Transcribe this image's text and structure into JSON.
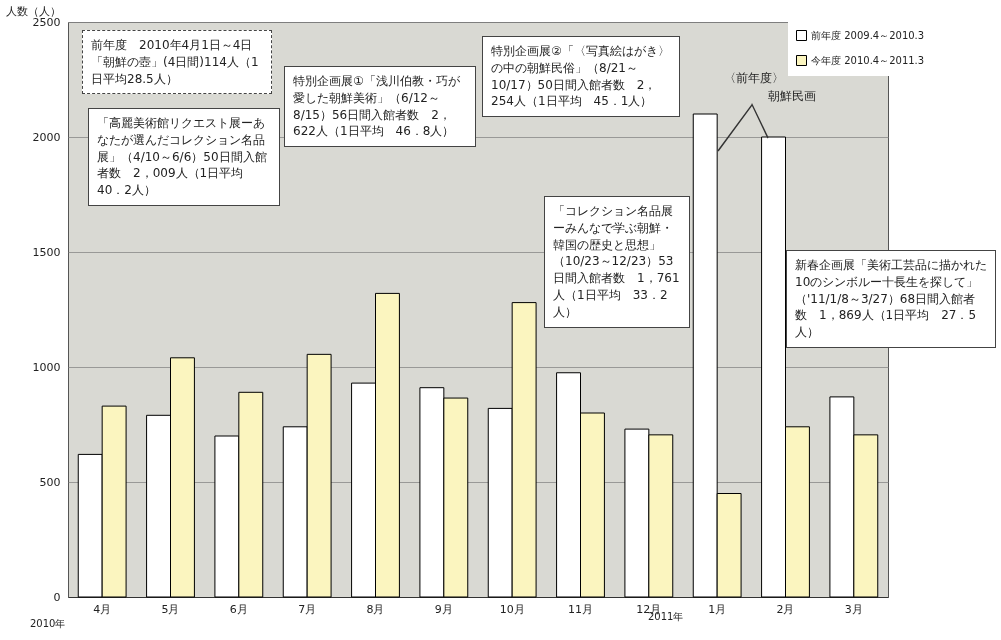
{
  "chart_data": {
    "type": "bar",
    "ylabel": "人数（人）",
    "categories": [
      "4月",
      "5月",
      "6月",
      "7月",
      "8月",
      "9月",
      "10月",
      "11月",
      "12月",
      "1月",
      "2月",
      "3月"
    ],
    "series": [
      {
        "name": "前年度 2009.4～2010.3",
        "color": "#ffffff",
        "values": [
          620,
          790,
          700,
          740,
          930,
          910,
          820,
          975,
          730,
          2100,
          2000,
          870
        ]
      },
      {
        "name": "今年度 2010.4～2011.3",
        "color": "#fbf5bf",
        "values": [
          830,
          1040,
          890,
          1055,
          1320,
          865,
          1280,
          800,
          705,
          450,
          740,
          705
        ]
      }
    ],
    "ylim": [
      0,
      2500
    ],
    "yticks": [
      0,
      500,
      1000,
      1500,
      2000,
      2500
    ],
    "grid": "y",
    "legend": "top right",
    "annotations": [
      "前年度　2010年4月1日～4日「朝鮮の壺」(4日間)114人（1日平均28.5人）",
      "「高麗美術館リクエスト展ーあなたが選んだコレクション名品展」（4/10～6/6）50日間入館者数　2，009人（1日平均　40．2人）",
      "特別企画展①「浅川伯教・巧が愛した朝鮮美術」（6/12～8/15）56日間入館者数　2，622人（1日平均　46．8人）",
      "特別企画展②「〈写真絵はがき〉の中の朝鮮民俗」（8/21～10/17）50日間入館者数　2，254人（1日平均　45．1人）",
      "「コレクション名品展ーみんなで学ぶ朝鮮・韓国の歴史と思想」（10/23～12/23）53日間入館者数　1，761人（1日平均　33．2人）",
      "新春企画展「美術工芸品に描かれた10のシンボルー十長生を探して」（'11/1/8～3/27）68日間入館者数　1，869人（1日平均　27．5人）",
      "〈前年度〉",
      "朝鮮民画",
      "2010年",
      "2011年"
    ]
  }
}
